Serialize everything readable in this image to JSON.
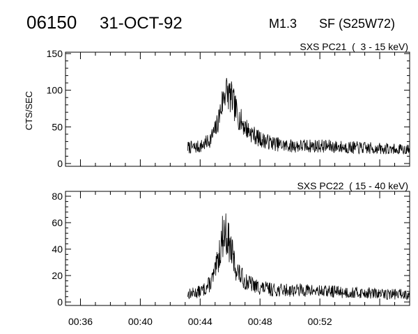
{
  "header": {
    "event_number": "06150",
    "date": "31-OCT-92",
    "goes_class": "M1.3",
    "location": "SF (S25W72)"
  },
  "chart_data": [
    {
      "type": "line",
      "band_label": "SXS PC21  (  3 - 15 keV)",
      "ylabel": "CTS/SEC",
      "xlim": [
        "00:35:00",
        "00:58:00"
      ],
      "ylim": [
        0,
        150
      ],
      "yticks": [
        "0",
        "50",
        "100",
        "150"
      ],
      "xticks": [
        "00:36",
        "00:40",
        "00:44",
        "00:48",
        "00:52"
      ],
      "data_start": "00:43:10",
      "series": [
        {
          "x": [
            "00:43:10",
            "00:43:40",
            "00:44:00",
            "00:44:20",
            "00:44:40",
            "00:45:00",
            "00:45:10",
            "00:45:20",
            "00:45:30",
            "00:45:40",
            "00:45:50",
            "00:46:00",
            "00:46:10",
            "00:46:20",
            "00:46:40",
            "00:47:00",
            "00:47:20",
            "00:47:40",
            "00:48:00",
            "00:48:30",
            "00:49:00",
            "00:49:30",
            "00:50:00",
            "00:51:00",
            "00:52:00",
            "00:53:00",
            "00:54:00",
            "00:55:00",
            "00:56:00",
            "00:57:00",
            "00:58:00"
          ],
          "values": [
            22,
            22,
            23,
            27,
            33,
            45,
            55,
            70,
            85,
            100,
            97,
            92,
            86,
            75,
            60,
            50,
            43,
            38,
            33,
            30,
            27,
            25,
            24,
            24,
            24,
            23,
            22,
            21,
            20,
            19,
            18
          ]
        }
      ]
    },
    {
      "type": "line",
      "band_label": "SXS PC22  ( 15 - 40 keV)",
      "ylabel": "",
      "xlim": [
        "00:35:00",
        "00:58:00"
      ],
      "ylim": [
        0,
        80
      ],
      "yticks": [
        "0",
        "20",
        "40",
        "60",
        "80"
      ],
      "xticks": [
        "00:36",
        "00:40",
        "00:44",
        "00:48",
        "00:52"
      ],
      "data_start": "00:43:10",
      "series": [
        {
          "x": [
            "00:43:10",
            "00:43:40",
            "00:44:00",
            "00:44:20",
            "00:44:40",
            "00:45:00",
            "00:45:10",
            "00:45:20",
            "00:45:30",
            "00:45:40",
            "00:45:50",
            "00:46:00",
            "00:46:10",
            "00:46:20",
            "00:46:40",
            "00:47:00",
            "00:47:20",
            "00:47:40",
            "00:48:00",
            "00:48:30",
            "00:49:00",
            "00:49:30",
            "00:50:00",
            "00:51:00",
            "00:52:00",
            "00:53:00",
            "00:54:00",
            "00:55:00",
            "00:56:00",
            "00:57:00",
            "00:58:00"
          ],
          "values": [
            6,
            7,
            8,
            10,
            14,
            22,
            30,
            40,
            50,
            54,
            48,
            42,
            35,
            27,
            20,
            16,
            14,
            12,
            11,
            10,
            9,
            9,
            9,
            9,
            8,
            8,
            7,
            7,
            6,
            6,
            6
          ]
        }
      ]
    }
  ]
}
